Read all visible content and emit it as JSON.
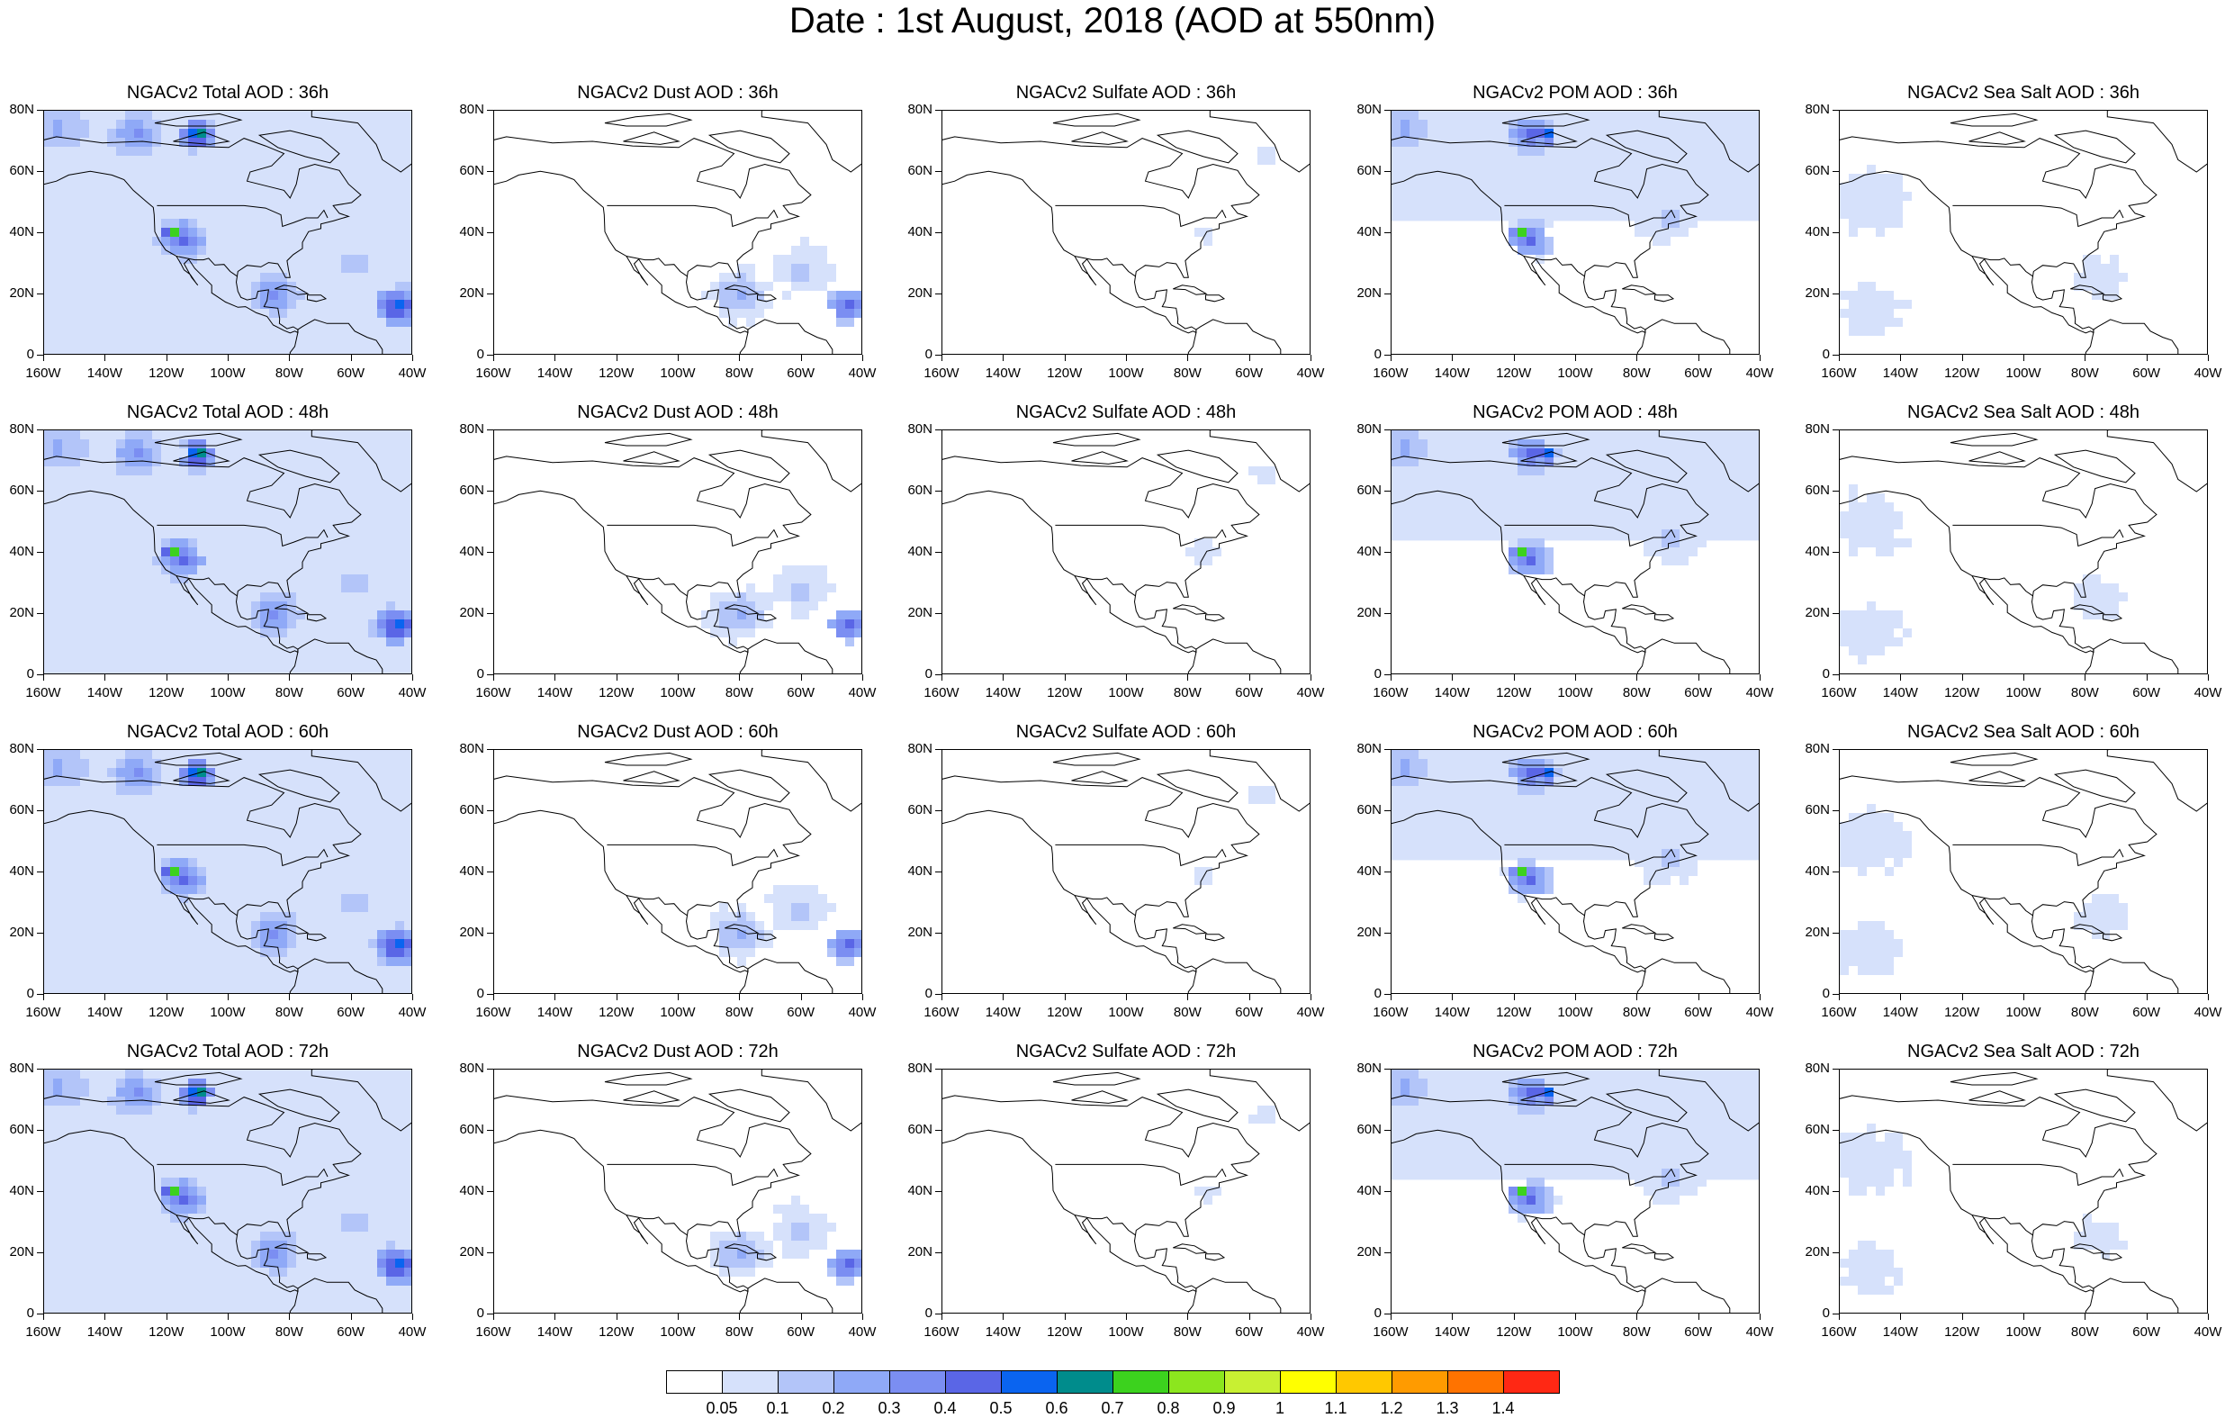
{
  "title": "Date : 1st August, 2018 (AOD at 550nm)",
  "panel_titles": [
    [
      "NGACv2 Total AOD : 36h",
      "NGACv2 Dust AOD : 36h",
      "NGACv2 Sulfate AOD : 36h",
      "NGACv2 POM AOD : 36h",
      "NGACv2 Sea Salt AOD : 36h"
    ],
    [
      "NGACv2 Total AOD : 48h",
      "NGACv2 Dust AOD : 48h",
      "NGACv2 Sulfate AOD : 48h",
      "NGACv2 POM AOD : 48h",
      "NGACv2 Sea Salt AOD : 48h"
    ],
    [
      "NGACv2 Total AOD : 60h",
      "NGACv2 Dust AOD : 60h",
      "NGACv2 Sulfate AOD : 60h",
      "NGACv2 POM AOD : 60h",
      "NGACv2 Sea Salt AOD : 60h"
    ],
    [
      "NGACv2 Total AOD : 72h",
      "NGACv2 Dust AOD : 72h",
      "NGACv2 Sulfate AOD : 72h",
      "NGACv2 POM AOD : 72h",
      "NGACv2 Sea Salt  AOD : 72h"
    ]
  ],
  "lat_ticks": [
    "80N",
    "60N",
    "40N",
    "20N",
    "0"
  ],
  "lon_ticks": [
    "160W",
    "140W",
    "120W",
    "100W",
    "80W",
    "60W",
    "40W"
  ],
  "colorbar": {
    "labels": [
      "0.05",
      "0.1",
      "0.2",
      "0.3",
      "0.4",
      "0.5",
      "0.6",
      "0.7",
      "0.8",
      "0.9",
      "1",
      "1.1",
      "1.2",
      "1.3",
      "1.4"
    ],
    "colors": [
      "#ffffff",
      "#d6e1fb",
      "#b3c5f9",
      "#8fa9f7",
      "#7b8ef2",
      "#5a66e6",
      "#0a64f0",
      "#008c8c",
      "#3cd21e",
      "#8ce61e",
      "#c8f032",
      "#ffff00",
      "#ffc800",
      "#ff9b00",
      "#ff7300",
      "#ff2814"
    ]
  },
  "aerosol_fields": {
    "total": [
      {
        "lon": -155,
        "lat": 74,
        "r": 12,
        "level": 3
      },
      {
        "lon": -130,
        "lat": 72,
        "r": 10,
        "level": 4
      },
      {
        "lon": -110,
        "lat": 72,
        "r": 6,
        "level": 8
      },
      {
        "lon": -115,
        "lat": 38,
        "r": 9,
        "level": 5
      },
      {
        "lon": -118,
        "lat": 40,
        "r": 4,
        "level": 9
      },
      {
        "lon": -85,
        "lat": 20,
        "r": 10,
        "level": 4
      },
      {
        "lon": -45,
        "lat": 16,
        "r": 8,
        "level": 7
      },
      {
        "lon": -60,
        "lat": 30,
        "r": 14,
        "level": 2
      }
    ],
    "dust": [
      {
        "lon": -80,
        "lat": 20,
        "r": 10,
        "level": 3
      },
      {
        "lon": -60,
        "lat": 28,
        "r": 10,
        "level": 2
      },
      {
        "lon": -45,
        "lat": 16,
        "r": 7,
        "level": 6
      }
    ],
    "sulfate": [
      {
        "lon": -55,
        "lat": 65,
        "r": 4,
        "level": 1
      },
      {
        "lon": -75,
        "lat": 40,
        "r": 4,
        "level": 1
      }
    ],
    "pom": [
      {
        "lon": -155,
        "lat": 74,
        "r": 10,
        "level": 3
      },
      {
        "lon": -115,
        "lat": 72,
        "r": 8,
        "level": 5
      },
      {
        "lon": -110,
        "lat": 72,
        "r": 4,
        "level": 8
      },
      {
        "lon": -115,
        "lat": 38,
        "r": 8,
        "level": 5
      },
      {
        "lon": -118,
        "lat": 40,
        "r": 3,
        "level": 9
      },
      {
        "lon": -70,
        "lat": 45,
        "r": 10,
        "level": 2
      }
    ],
    "seasalt": [
      {
        "lon": -150,
        "lat": 50,
        "r": 12,
        "level": 1
      },
      {
        "lon": -75,
        "lat": 25,
        "r": 8,
        "level": 1
      },
      {
        "lon": -150,
        "lat": 15,
        "r": 10,
        "level": 1
      }
    ]
  }
}
